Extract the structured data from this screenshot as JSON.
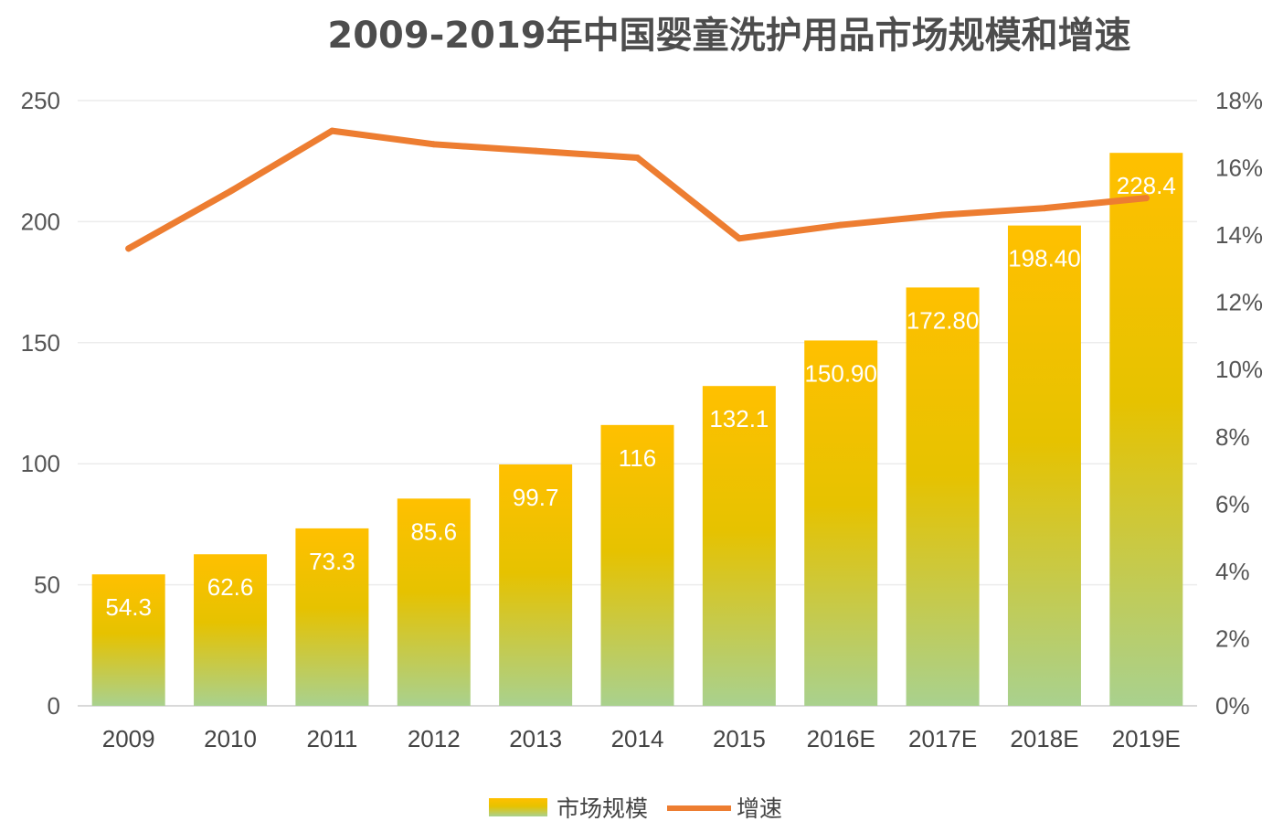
{
  "chart_data": {
    "type": "bar",
    "title": "2009-2019年中国婴童洗护用品市场规模和增速",
    "categories": [
      "2009",
      "2010",
      "2011",
      "2012",
      "2013",
      "2014",
      "2015",
      "2016E",
      "2017E",
      "2018E",
      "2019E"
    ],
    "series": [
      {
        "name": "市场规模",
        "type": "bar",
        "axis": "left",
        "values": [
          54.3,
          62.6,
          73.3,
          85.6,
          99.7,
          116,
          132.1,
          150.9,
          172.8,
          198.4,
          228.4
        ],
        "labels": [
          "54.3",
          "62.6",
          "73.3",
          "85.6",
          "99.7",
          "116",
          "132.1",
          "150.90",
          "172.80",
          "198.40",
          "228.4"
        ]
      },
      {
        "name": "增速",
        "type": "line",
        "axis": "right",
        "values": [
          13.6,
          15.3,
          17.1,
          16.7,
          16.5,
          16.3,
          13.9,
          14.3,
          14.6,
          14.8,
          15.1
        ]
      }
    ],
    "ylim": [
      0,
      250
    ],
    "yticks": [
      "0",
      "50",
      "100",
      "150",
      "200",
      "250"
    ],
    "y2lim": [
      0,
      18
    ],
    "y2ticks": [
      "0%",
      "2%",
      "4%",
      "6%",
      "8%",
      "10%",
      "12%",
      "14%",
      "16%",
      "18%"
    ],
    "grid": true,
    "legend": "bottom-center",
    "colors": {
      "bar_top": "#ffc000",
      "bar_mid": "#e6c200",
      "bar_bottom": "#a9d18e",
      "line": "#ed7d31",
      "grid": "#ececec",
      "axis": "#d9d9d9"
    }
  }
}
